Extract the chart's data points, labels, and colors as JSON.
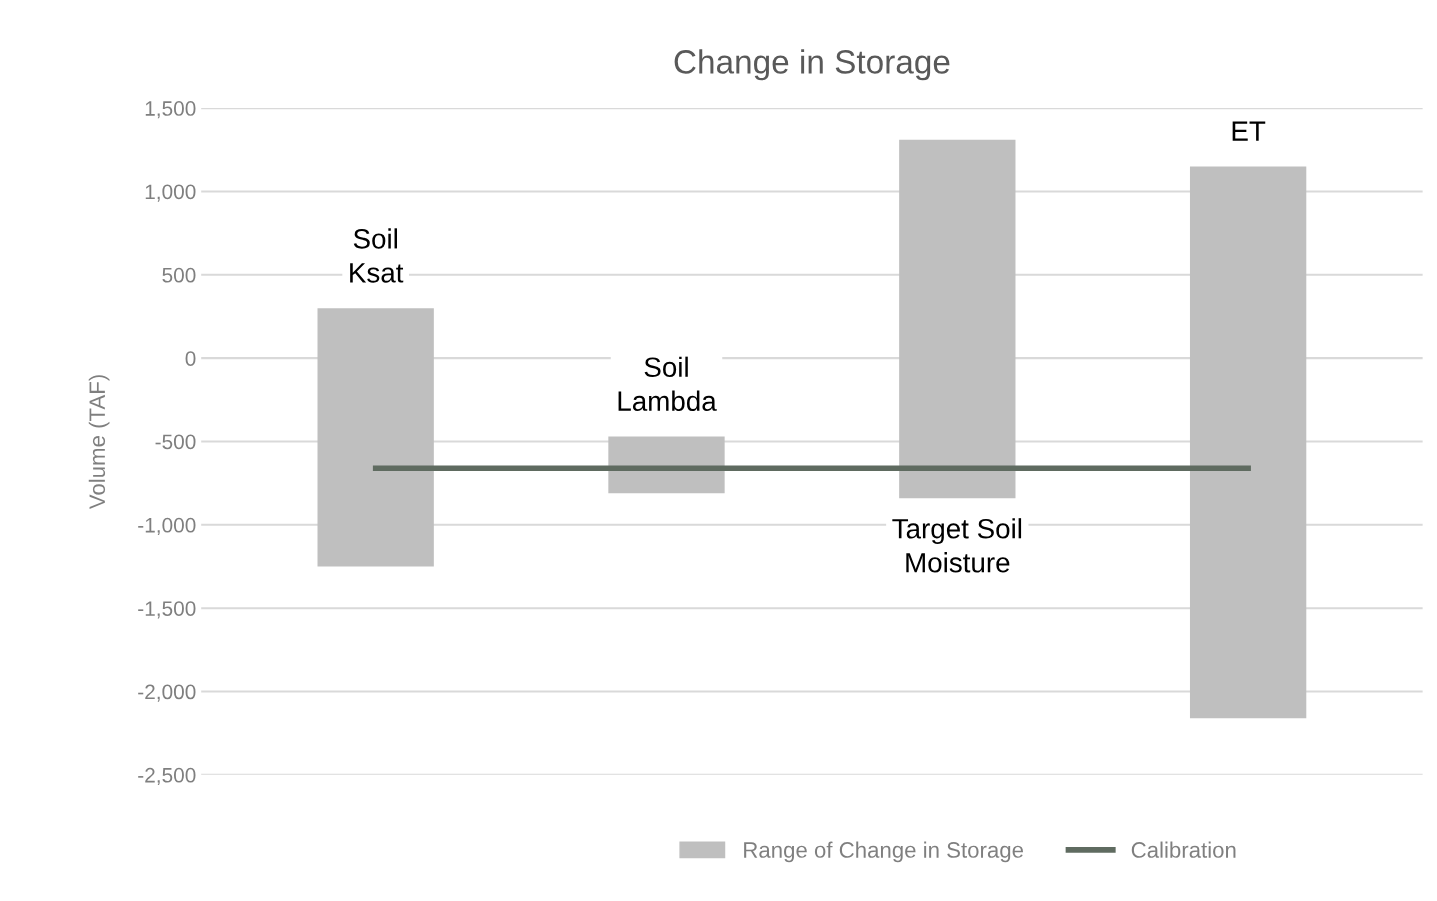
{
  "chart_data": {
    "type": "bar",
    "title": "Change in Storage",
    "ylabel": "Volume (TAF)",
    "categories": [
      "Soil\nKsat",
      "Soil\nLambda",
      "Target Soil\nMoisture",
      "ET"
    ],
    "series": [
      {
        "name": "Range of Change in Storage",
        "color": "#bfbfbf",
        "base": [
          -1250,
          -810,
          -840,
          -2160
        ],
        "values": [
          1550,
          340,
          2150,
          3310
        ]
      },
      {
        "name": "Calibration",
        "type": "line",
        "color": "#5f6b60",
        "values": [
          -660,
          -660,
          -660,
          -660
        ]
      }
    ],
    "ylim": [
      -2500,
      1500
    ],
    "yticks": [
      {
        "value": -2500,
        "label": "-2,500"
      },
      {
        "value": -2000,
        "label": "-2,000"
      },
      {
        "value": -1500,
        "label": "-1,500"
      },
      {
        "value": -1000,
        "label": "-1,000"
      },
      {
        "value": -500,
        "label": "-500"
      },
      0,
      {
        "value": 500,
        "label": "500"
      },
      {
        "value": 1000,
        "label": "1,000"
      },
      {
        "value": 1500,
        "label": "1,500"
      }
    ],
    "grid": "y",
    "legend": "bottom",
    "tick_labels": "y"
  }
}
